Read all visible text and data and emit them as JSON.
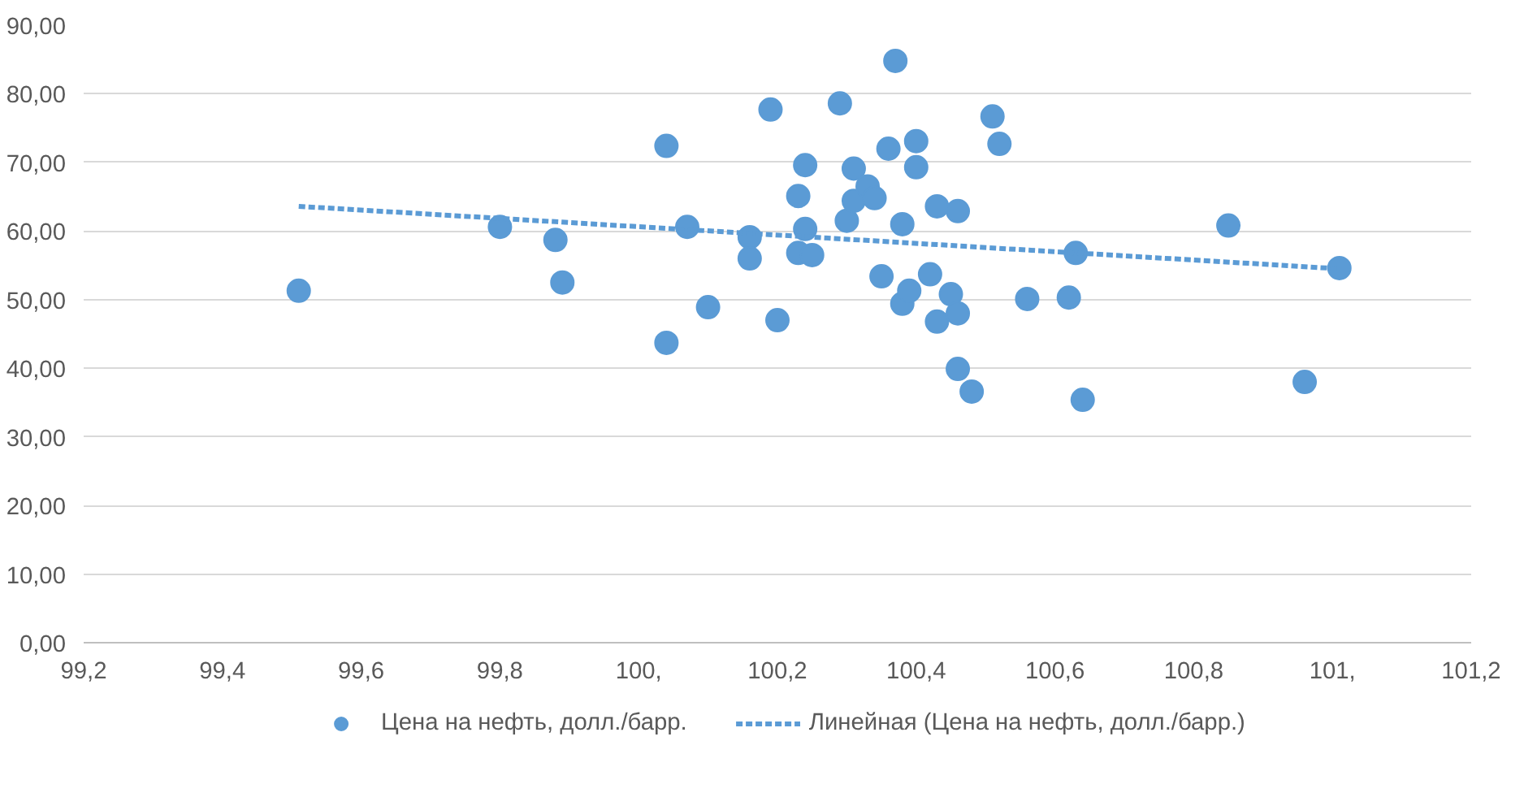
{
  "chart_data": {
    "type": "scatter",
    "xlim": [
      99.2,
      101.2
    ],
    "xticks": [
      {
        "value": 99.2,
        "label": "99,2"
      },
      {
        "value": 99.4,
        "label": "99,4"
      },
      {
        "value": 99.6,
        "label": "99,6"
      },
      {
        "value": 99.8,
        "label": "99,8"
      },
      {
        "value": 100,
        "label": "100,"
      },
      {
        "value": 100.2,
        "label": "100,2"
      },
      {
        "value": 100.4,
        "label": "100,4"
      },
      {
        "value": 100.6,
        "label": "100,6"
      },
      {
        "value": 100.8,
        "label": "100,8"
      },
      {
        "value": 101,
        "label": "101,"
      },
      {
        "value": 101.2,
        "label": "101,2"
      }
    ],
    "ylim": [
      0,
      90
    ],
    "yticks": [
      {
        "value": 0,
        "label": "0,00"
      },
      {
        "value": 10,
        "label": "10,00"
      },
      {
        "value": 20,
        "label": "20,00"
      },
      {
        "value": 30,
        "label": "30,00"
      },
      {
        "value": 40,
        "label": "40,00"
      },
      {
        "value": 50,
        "label": "50,00"
      },
      {
        "value": 60,
        "label": "60,00"
      },
      {
        "value": 70,
        "label": "70,00"
      },
      {
        "value": 80,
        "label": "80,00"
      },
      {
        "value": 90,
        "label": "90,00"
      }
    ],
    "grid": "y",
    "legend": "bottom",
    "series": [
      {
        "name": "Цена на нефть, долл./барр.",
        "marker": "circle",
        "color": "#5b9bd5",
        "x": [
          99.51,
          99.8,
          99.88,
          99.89,
          100.04,
          100.04,
          100.07,
          100.1,
          100.16,
          100.16,
          100.19,
          100.2,
          100.23,
          100.23,
          100.24,
          100.24,
          100.25,
          100.29,
          100.3,
          100.31,
          100.31,
          100.33,
          100.34,
          100.35,
          100.36,
          100.37,
          100.38,
          100.38,
          100.39,
          100.4,
          100.4,
          100.42,
          100.43,
          100.43,
          100.45,
          100.46,
          100.46,
          100.46,
          100.48,
          100.51,
          100.52,
          100.56,
          100.62,
          100.63,
          100.64,
          100.85,
          100.96,
          101.01
        ],
        "values": [
          51.3,
          60.6,
          58.7,
          52.5,
          72.4,
          43.7,
          60.6,
          48.9,
          59.1,
          56.0,
          77.7,
          47.0,
          65.1,
          56.8,
          69.6,
          60.3,
          56.5,
          78.6,
          61.5,
          69.1,
          64.4,
          66.5,
          64.8,
          53.4,
          72.0,
          84.8,
          61.0,
          49.4,
          51.3,
          73.1,
          69.3,
          53.7,
          46.8,
          63.6,
          50.8,
          62.9,
          48.0,
          39.9,
          36.6,
          76.7,
          72.7,
          50.1,
          50.3,
          56.8,
          35.4,
          60.8,
          38.0,
          54.6
        ]
      },
      {
        "name": "Линейная (Цена на нефть, долл./барр.)",
        "type": "line",
        "line_style": "dashed",
        "color": "#5b9bd5",
        "x": [
          99.51,
          101.01
        ],
        "values": [
          63.6,
          54.5
        ]
      }
    ]
  }
}
